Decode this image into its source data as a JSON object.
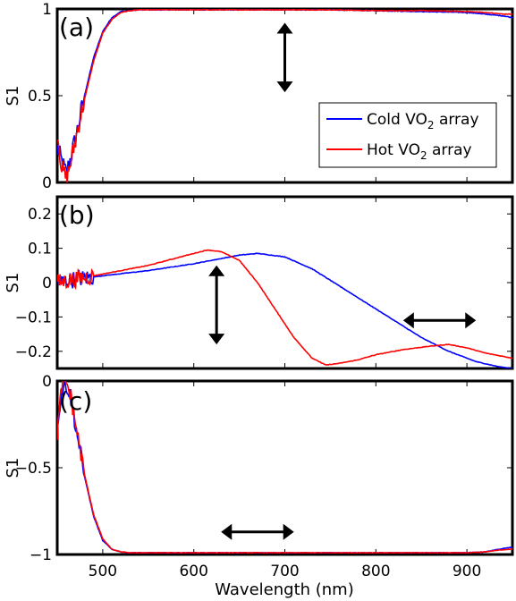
{
  "chart_data": [
    {
      "type": "line",
      "panel_label": "(a)",
      "ylabel": "S1",
      "xlim": [
        450,
        950
      ],
      "ylim": [
        0,
        1
      ],
      "yticks": [
        {
          "v": 0,
          "label": "0"
        },
        {
          "v": 0.5,
          "label": "0.5"
        },
        {
          "v": 1,
          "label": "1"
        }
      ],
      "series": [
        {
          "name": "Cold VO2 array",
          "color": "#0000ff",
          "x": [
            450,
            455,
            460,
            465,
            470,
            475,
            480,
            490,
            500,
            510,
            520,
            530,
            540,
            560,
            600,
            650,
            700,
            750,
            800,
            850,
            900,
            920,
            940,
            950
          ],
          "y": [
            0.2,
            0.12,
            0.05,
            0.15,
            0.25,
            0.38,
            0.5,
            0.72,
            0.87,
            0.95,
            0.985,
            0.99,
            0.995,
            0.995,
            0.995,
            0.995,
            0.995,
            0.995,
            0.99,
            0.985,
            0.98,
            0.97,
            0.96,
            0.95
          ]
        },
        {
          "name": "Hot VO2 array",
          "color": "#ff0000",
          "x": [
            450,
            455,
            460,
            465,
            470,
            475,
            480,
            490,
            500,
            510,
            520,
            530,
            540,
            560,
            600,
            650,
            700,
            750,
            800,
            850,
            900,
            920,
            940,
            950
          ],
          "y": [
            0.3,
            0.08,
            0.02,
            0.12,
            0.24,
            0.37,
            0.48,
            0.7,
            0.86,
            0.94,
            0.98,
            0.99,
            0.995,
            0.995,
            0.995,
            0.995,
            0.995,
            0.995,
            0.99,
            0.99,
            0.985,
            0.98,
            0.97,
            0.97
          ]
        }
      ],
      "noise_below_x": 480,
      "noise_amp": 0.06
    },
    {
      "type": "line",
      "panel_label": "(b)",
      "ylabel": "S1",
      "xlim": [
        450,
        950
      ],
      "ylim": [
        -0.25,
        0.25
      ],
      "yticks": [
        {
          "v": -0.2,
          "label": "−0.2"
        },
        {
          "v": -0.1,
          "label": "−0.1"
        },
        {
          "v": 0,
          "label": "0"
        },
        {
          "v": 0.1,
          "label": "0.1"
        },
        {
          "v": 0.2,
          "label": "0.2"
        }
      ],
      "series": [
        {
          "name": "Cold VO2 array",
          "color": "#0000ff",
          "x": [
            450,
            470,
            500,
            550,
            600,
            650,
            670,
            700,
            730,
            760,
            790,
            820,
            850,
            880,
            910,
            935,
            950
          ],
          "y": [
            0.0,
            0.01,
            0.02,
            0.035,
            0.055,
            0.08,
            0.085,
            0.075,
            0.04,
            -0.01,
            -0.06,
            -0.11,
            -0.16,
            -0.2,
            -0.23,
            -0.245,
            -0.25
          ]
        },
        {
          "name": "Hot VO2 array",
          "color": "#ff0000",
          "x": [
            450,
            470,
            500,
            550,
            600,
            615,
            630,
            650,
            670,
            690,
            710,
            730,
            745,
            760,
            780,
            800,
            830,
            860,
            880,
            900,
            920,
            940,
            950
          ],
          "y": [
            0.0,
            0.01,
            0.025,
            0.05,
            0.085,
            0.095,
            0.09,
            0.065,
            0.0,
            -0.08,
            -0.16,
            -0.22,
            -0.24,
            -0.235,
            -0.225,
            -0.21,
            -0.195,
            -0.185,
            -0.18,
            -0.19,
            -0.205,
            -0.215,
            -0.22
          ]
        }
      ],
      "noise_below_x": 490,
      "noise_amp": 0.05
    },
    {
      "type": "line",
      "panel_label": "(c)",
      "ylabel": "S1",
      "xlabel": "Wavelength (nm)",
      "xlim": [
        450,
        950
      ],
      "ylim": [
        -1,
        0
      ],
      "yticks": [
        {
          "v": -1,
          "label": "−1"
        },
        {
          "v": -0.5,
          "label": "−0.5"
        },
        {
          "v": 0,
          "label": "0"
        }
      ],
      "xticks": [
        {
          "v": 500,
          "label": "500"
        },
        {
          "v": 600,
          "label": "600"
        },
        {
          "v": 700,
          "label": "700"
        },
        {
          "v": 800,
          "label": "800"
        },
        {
          "v": 900,
          "label": "900"
        }
      ],
      "series": [
        {
          "name": "Cold VO2 array",
          "color": "#0000ff",
          "x": [
            450,
            455,
            460,
            465,
            470,
            475,
            480,
            490,
            500,
            510,
            520,
            530,
            540,
            560,
            600,
            700,
            800,
            900,
            920,
            935,
            945,
            950
          ],
          "y": [
            -0.25,
            -0.05,
            -0.02,
            -0.1,
            -0.25,
            -0.4,
            -0.55,
            -0.78,
            -0.92,
            -0.97,
            -0.985,
            -0.99,
            -0.99,
            -0.99,
            -0.99,
            -0.99,
            -0.99,
            -0.99,
            -0.985,
            -0.97,
            -0.96,
            -0.96
          ]
        },
        {
          "name": "Hot VO2 array",
          "color": "#ff0000",
          "x": [
            450,
            455,
            460,
            465,
            470,
            475,
            480,
            490,
            500,
            510,
            520,
            530,
            540,
            560,
            600,
            700,
            800,
            900,
            920,
            935,
            945,
            950
          ],
          "y": [
            -0.3,
            -0.03,
            -0.01,
            -0.09,
            -0.24,
            -0.39,
            -0.54,
            -0.77,
            -0.91,
            -0.97,
            -0.985,
            -0.99,
            -0.99,
            -0.99,
            -0.99,
            -0.99,
            -0.99,
            -0.99,
            -0.985,
            -0.975,
            -0.97,
            -0.97
          ]
        }
      ],
      "noise_below_x": 480,
      "noise_amp": 0.05
    }
  ],
  "legend": {
    "panel": 0,
    "entries": [
      {
        "prefix": "Cold VO",
        "sub": "2",
        "suffix": " array",
        "color": "#0000ff"
      },
      {
        "prefix": "Hot VO",
        "sub": "2",
        "suffix": " array",
        "color": "#ff0000"
      }
    ]
  },
  "arrows": [
    {
      "panel": 0,
      "dir": "vertical",
      "x": 700,
      "y1": 0.92,
      "y2": 0.52
    },
    {
      "panel": 1,
      "dir": "vertical",
      "x": 625,
      "y1": 0.05,
      "y2": -0.18
    },
    {
      "panel": 1,
      "dir": "horizontal",
      "y": -0.11,
      "x1": 830,
      "x2": 910
    },
    {
      "panel": 2,
      "dir": "horizontal",
      "y": -0.87,
      "x1": 630,
      "x2": 710
    }
  ]
}
